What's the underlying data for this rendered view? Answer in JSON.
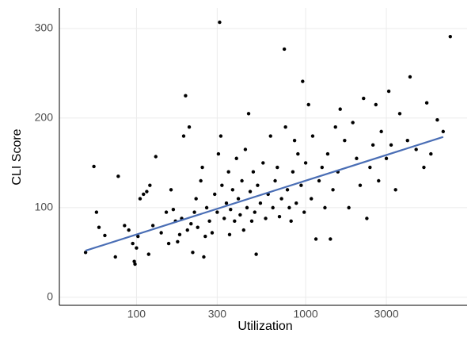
{
  "chart_data": {
    "type": "scatter",
    "x_label": "Utilization",
    "y_label": "CLI Score",
    "xscale": "log",
    "xlim": [
      35,
      9000
    ],
    "ylim": [
      -9,
      323
    ],
    "xticks": [
      100,
      300,
      1000,
      3000
    ],
    "yticks": [
      0,
      100,
      200,
      300
    ],
    "grid": true,
    "color": "#000000",
    "x": [
      50,
      56,
      58,
      60,
      65,
      75,
      78,
      85,
      90,
      95,
      97,
      98,
      100,
      102,
      105,
      110,
      115,
      118,
      120,
      125,
      130,
      140,
      150,
      155,
      160,
      165,
      170,
      175,
      180,
      185,
      190,
      195,
      200,
      205,
      210,
      215,
      220,
      225,
      230,
      240,
      245,
      250,
      255,
      260,
      270,
      280,
      290,
      300,
      305,
      310,
      315,
      320,
      330,
      340,
      350,
      355,
      360,
      370,
      380,
      390,
      400,
      410,
      420,
      430,
      440,
      450,
      460,
      470,
      480,
      490,
      500,
      510,
      520,
      540,
      560,
      580,
      600,
      620,
      640,
      660,
      680,
      700,
      720,
      748,
      760,
      780,
      800,
      820,
      840,
      860,
      880,
      900,
      940,
      960,
      980,
      1000,
      1040,
      1080,
      1100,
      1150,
      1200,
      1250,
      1300,
      1350,
      1400,
      1450,
      1500,
      1550,
      1600,
      1700,
      1800,
      1900,
      2000,
      2100,
      2200,
      2300,
      2400,
      2500,
      2600,
      2700,
      2800,
      3000,
      3100,
      3200,
      3400,
      3600,
      4000,
      4140,
      4500,
      5000,
      5200,
      5500,
      6000,
      6500,
      7160
    ],
    "values": [
      50,
      146,
      95,
      78,
      69,
      45,
      135,
      80,
      75,
      60,
      40,
      37,
      55,
      68,
      110,
      115,
      118,
      48,
      125,
      80,
      157,
      72,
      95,
      60,
      120,
      98,
      85,
      62,
      70,
      88,
      180,
      225,
      75,
      190,
      82,
      50,
      95,
      110,
      78,
      130,
      145,
      45,
      68,
      100,
      85,
      72,
      115,
      95,
      160,
      307,
      180,
      125,
      88,
      105,
      140,
      70,
      98,
      120,
      85,
      155,
      110,
      92,
      130,
      75,
      165,
      100,
      205,
      118,
      85,
      140,
      95,
      48,
      125,
      105,
      150,
      88,
      115,
      180,
      100,
      130,
      145,
      90,
      110,
      277,
      190,
      120,
      100,
      85,
      140,
      175,
      105,
      160,
      125,
      241,
      95,
      150,
      215,
      110,
      180,
      65,
      130,
      145,
      100,
      160,
      65,
      120,
      190,
      140,
      210,
      175,
      100,
      195,
      155,
      125,
      222,
      88,
      145,
      170,
      215,
      130,
      185,
      155,
      230,
      170,
      120,
      205,
      175,
      246,
      165,
      145,
      217,
      160,
      198,
      185,
      291
    ],
    "trend_line": {
      "x": [
        50,
        6500
      ],
      "values": [
        52,
        179
      ],
      "color": "#4a6eb5"
    }
  }
}
